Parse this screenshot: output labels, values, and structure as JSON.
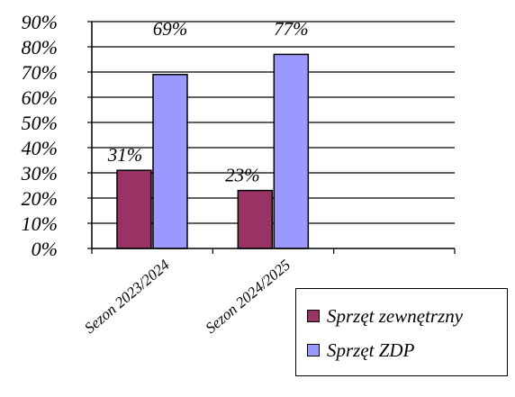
{
  "chart_data": {
    "type": "bar",
    "categories": [
      "Sezon 2023/2024",
      "Sezon 2024/2025"
    ],
    "series": [
      {
        "name": "Sprzęt zewnętrzny",
        "values": [
          31,
          23
        ],
        "color": "#993366"
      },
      {
        "name": "Sprzęt ZDP",
        "values": [
          69,
          77
        ],
        "color": "#9999ff"
      }
    ],
    "data_labels": [
      [
        "31%",
        "23%"
      ],
      [
        "69%",
        "77%"
      ]
    ],
    "y_ticks": [
      "0%",
      "10%",
      "20%",
      "30%",
      "40%",
      "50%",
      "60%",
      "70%",
      "80%",
      "90%"
    ],
    "ylim": [
      0,
      90
    ],
    "y_unit": "%",
    "grid": true,
    "legend_position": "bottom-right",
    "title": "",
    "xlabel": "",
    "ylabel": ""
  }
}
